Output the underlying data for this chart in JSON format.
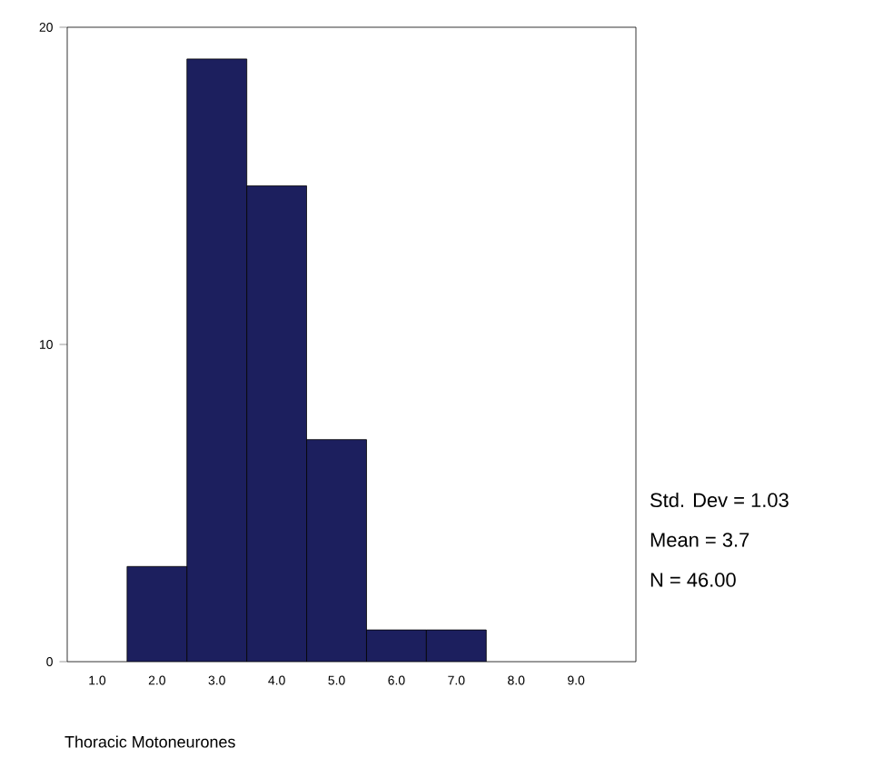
{
  "chart_data": {
    "type": "histogram",
    "xlabel": "Thoracic Motoneurones",
    "bins": [
      1.5,
      2.5,
      3.5,
      4.5,
      5.5,
      6.5,
      7.5
    ],
    "values": [
      3,
      19,
      15,
      7,
      1,
      1
    ],
    "color": "#1c1f5e",
    "xlim": [
      0.5,
      10
    ],
    "ylim": [
      0,
      20
    ],
    "xticks": [
      {
        "value": 1,
        "label": "1.0"
      },
      {
        "value": 2,
        "label": "2.0"
      },
      {
        "value": 3,
        "label": "3.0"
      },
      {
        "value": 4,
        "label": "4.0"
      },
      {
        "value": 5,
        "label": "5.0"
      },
      {
        "value": 6,
        "label": "6.0"
      },
      {
        "value": 7,
        "label": "7.0"
      },
      {
        "value": 8,
        "label": "8.0"
      },
      {
        "value": 9,
        "label": "9.0"
      }
    ],
    "yticks": [
      0,
      10,
      20
    ],
    "grid": false,
    "annotations": [
      "Std. Dev = 1.03",
      "Mean = 3.7",
      "N = 46.00"
    ]
  }
}
